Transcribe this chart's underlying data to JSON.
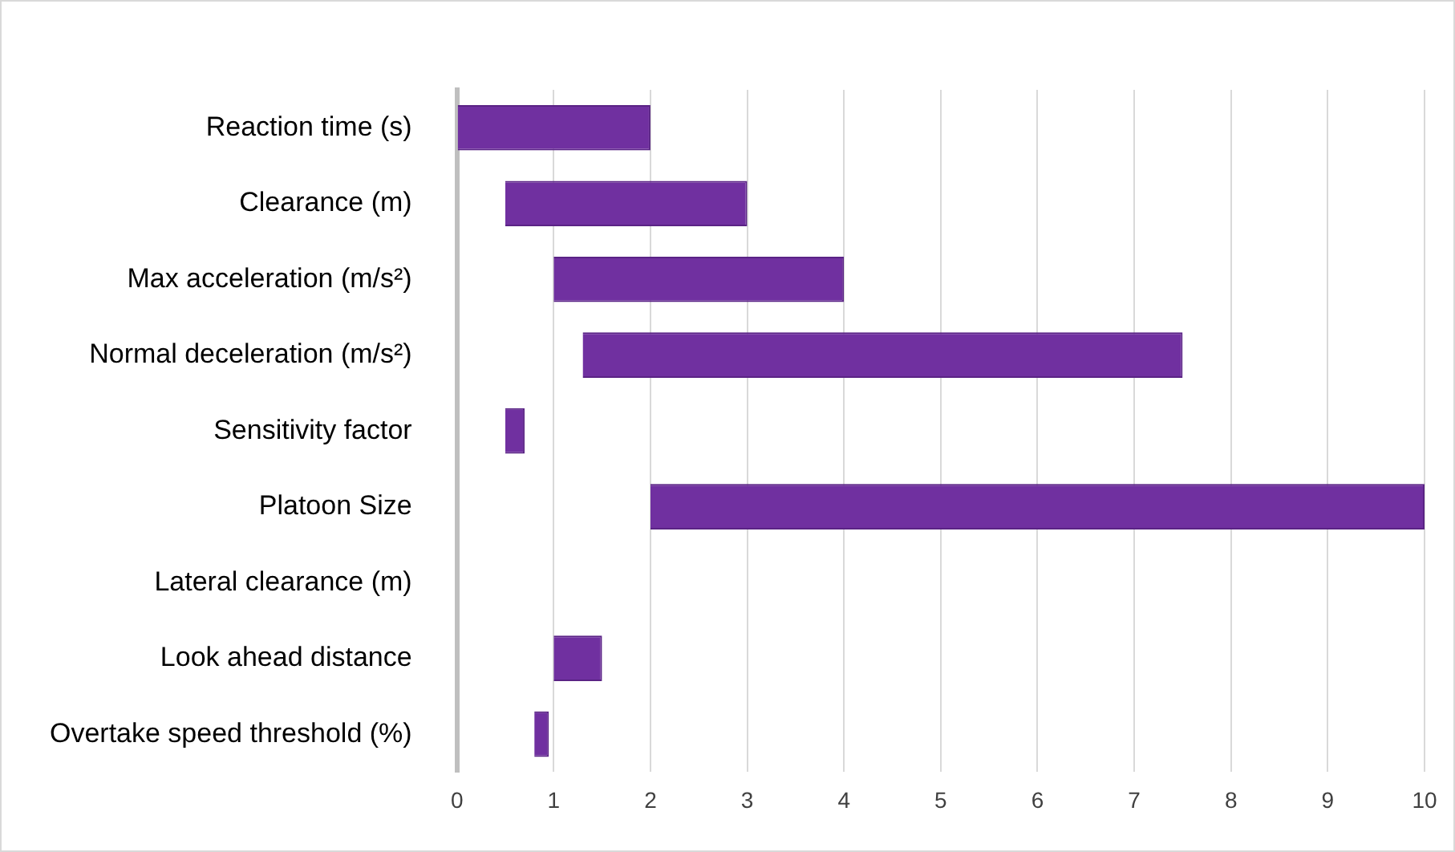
{
  "chart_data": {
    "type": "bar",
    "orientation": "horizontal",
    "categories": [
      "Reaction time (s)",
      "Clearance (m)",
      "Max acceleration (m/s²)",
      "Normal deceleration (m/s²)",
      "Sensitivity factor",
      "Platoon Size",
      "Lateral clearance (m)",
      "Look ahead distance",
      "Overtake speed threshold (%)"
    ],
    "base": [
      0,
      0.5,
      1,
      1.3,
      0.5,
      2,
      null,
      1,
      0.8
    ],
    "values": [
      2,
      2.5,
      3,
      6.2,
      0.2,
      8,
      null,
      0.5,
      0.15
    ],
    "color": "#7030a0",
    "xlim": [
      0,
      10
    ],
    "xticks": [
      0,
      1,
      2,
      3,
      4,
      5,
      6,
      7,
      8,
      9,
      10
    ],
    "grid": "x",
    "legend": false
  }
}
